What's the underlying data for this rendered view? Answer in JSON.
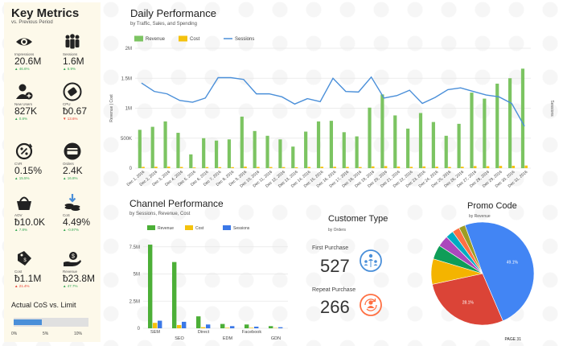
{
  "key_metrics": {
    "title": "Key Metrics",
    "subtitle": "vs. Previous Period",
    "items": [
      {
        "label": "Impressions",
        "value": "20.6M",
        "delta": "▲ 46.6%",
        "dir": "up",
        "icon": "eye-icon"
      },
      {
        "label": "Sessions",
        "value": "1.6M",
        "delta": "▲ 6.9%",
        "dir": "up",
        "icon": "people-group-icon"
      },
      {
        "label": "New Users",
        "value": "827K",
        "delta": "▲ 0.8%",
        "dir": "up",
        "icon": "add-user-icon"
      },
      {
        "label": "CPU",
        "value": "ƀ0.67",
        "delta": "▼ 13.6%",
        "dir": "down",
        "icon": "tag-icon"
      },
      {
        "label": "CVR",
        "value": "0.15%",
        "delta": "▲ 15.5%",
        "dir": "up",
        "icon": "percent-cycle-icon"
      },
      {
        "label": "Orders",
        "value": "2.4K",
        "delta": "▲ 16.8%",
        "dir": "up",
        "icon": "credit-card-icon"
      },
      {
        "label": "AOV",
        "value": "ƀ10.0K",
        "delta": "▲ 7.8%",
        "dir": "up",
        "icon": "shopping-basket-icon"
      },
      {
        "label": "CoS",
        "value": "4.49%",
        "delta": "▲ -0.97%",
        "dir": "up",
        "icon": "coins-down-icon"
      },
      {
        "label": "Cost",
        "value": "ƀ1.1M",
        "delta": "▲ 21.4%",
        "dir": "down",
        "icon": "price-tag-icon"
      },
      {
        "label": "Revenue",
        "value": "ƀ23.8M",
        "delta": "▲ 47.7%",
        "dir": "up",
        "icon": "hand-money-icon"
      }
    ],
    "colors": {
      "up": "#34a853",
      "down": "#ea4335",
      "panel": "#fdf9ea"
    }
  },
  "cos_limit": {
    "title": "Actual CoS vs. Limit",
    "actual_pct": 4.49,
    "ticks": [
      "0%",
      "5%",
      "10%"
    ]
  },
  "daily": {
    "title": "Daily Performance",
    "subtitle": "by Traffic, Sales, and Spending",
    "legend": [
      "Revenue",
      "Cost",
      "Sessions"
    ],
    "left_axis_label": "Revenue | Cost",
    "right_axis_label": "Sessions"
  },
  "channel": {
    "title": "Channel Performance",
    "subtitle": "by Sessions, Revenue, Cost",
    "legend": [
      "Revenue",
      "Cost",
      "Sessions"
    ]
  },
  "customer_type": {
    "title": "Customer Type",
    "subtitle": "by Orders",
    "first_label": "First Purchase",
    "first_value": "527",
    "repeat_label": "Repeat Purchase",
    "repeat_value": "266",
    "first_icon": "people-network-icon",
    "repeat_icon": "repeat-user-icon"
  },
  "promo": {
    "title": "Promo Code",
    "subtitle": "by Revenue"
  },
  "page_label": "PAGE 31",
  "chart_data": [
    {
      "type": "bar",
      "title": "Daily Performance",
      "subtitle": "by Traffic, Sales, and Spending",
      "categories": [
        "Dec 1, 2016",
        "Dec 2, 2016",
        "Dec 3, 2016",
        "Dec 4, 2016",
        "Dec 5, 2016",
        "Dec 6, 2016",
        "Dec 7, 2016",
        "Dec 8, 2016",
        "Dec 9, 2016",
        "Dec 10, 2016",
        "Dec 11, 2016",
        "Dec 12, 2016",
        "Dec 13, 2016",
        "Dec 14, 2016",
        "Dec 15, 2016",
        "Dec 16, 2016",
        "Dec 17, 2016",
        "Dec 18, 2016",
        "Dec 19, 2016",
        "Dec 20, 2016",
        "Dec 21, 2016",
        "Dec 22, 2016",
        "Dec 23, 2016",
        "Dec 24, 2016",
        "Dec 25, 2016",
        "Dec 26, 2016",
        "Dec 27, 2016",
        "Dec 28, 2016",
        "Dec 29, 2016",
        "Dec 30, 2016",
        "Dec 31, 2016"
      ],
      "series": [
        {
          "name": "Revenue",
          "kind": "bar",
          "color": "#7cc462",
          "values": [
            640000,
            690000,
            780000,
            590000,
            230000,
            500000,
            460000,
            480000,
            860000,
            620000,
            540000,
            480000,
            360000,
            610000,
            780000,
            790000,
            600000,
            530000,
            1010000,
            1230000,
            880000,
            660000,
            920000,
            770000,
            540000,
            740000,
            1260000,
            1160000,
            1410000,
            1500000,
            1660000
          ]
        },
        {
          "name": "Cost",
          "kind": "bar",
          "color": "#f4c20d",
          "values": [
            22000,
            25000,
            26000,
            20000,
            12000,
            18000,
            17000,
            17000,
            27000,
            21000,
            19000,
            18000,
            15000,
            20000,
            24000,
            24000,
            21000,
            19000,
            30000,
            35000,
            27000,
            22000,
            29000,
            25000,
            20000,
            24000,
            35000,
            33000,
            38000,
            40000,
            44000
          ]
        },
        {
          "name": "Sessions",
          "kind": "line",
          "color": "#4a8fd9",
          "values": [
            1420000,
            1280000,
            1240000,
            1130000,
            1100000,
            1170000,
            1510000,
            1510000,
            1480000,
            1240000,
            1240000,
            1190000,
            1070000,
            1160000,
            1110000,
            1500000,
            1280000,
            1270000,
            1520000,
            1170000,
            1210000,
            1300000,
            1080000,
            1180000,
            1310000,
            1340000,
            1280000,
            1220000,
            1190000,
            1080000,
            700000
          ]
        }
      ],
      "ylabel": "Revenue | Cost",
      "y2label": "Sessions",
      "ylim": [
        0,
        2000000
      ],
      "yticks": [
        "0",
        "500K",
        "1M",
        "1.5M",
        "2M"
      ],
      "legend_position": "top-left",
      "grid": true
    },
    {
      "type": "bar",
      "title": "Channel Performance",
      "subtitle": "by Sessions, Revenue, Cost",
      "categories": [
        "SEM",
        "SEO",
        "Direct",
        "EDM",
        "Facebook",
        "GDN"
      ],
      "series": [
        {
          "name": "Revenue",
          "color": "#4caf37",
          "values": [
            7700000,
            6100000,
            1100000,
            400000,
            350000,
            200000
          ]
        },
        {
          "name": "Cost",
          "color": "#f4c20d",
          "values": [
            500000,
            300000,
            100000,
            50000,
            50000,
            30000
          ]
        },
        {
          "name": "Sessions",
          "color": "#3b78e7",
          "values": [
            700000,
            600000,
            350000,
            200000,
            150000,
            100000
          ]
        }
      ],
      "ylim": [
        0,
        8000000
      ],
      "yticks": [
        "0",
        "2.5M",
        "5M",
        "7.5M"
      ],
      "legend_position": "top-center",
      "grid": true
    },
    {
      "type": "pie",
      "title": "Promo Code",
      "subtitle": "by Revenue",
      "slices": [
        {
          "value": 49.1,
          "color": "#4285f4",
          "label": "49.1%"
        },
        {
          "value": 28.1,
          "color": "#db4437",
          "label": "28.1%"
        },
        {
          "value": 8.0,
          "color": "#f4b400",
          "label": ""
        },
        {
          "value": 4.5,
          "color": "#0f9d58",
          "label": ""
        },
        {
          "value": 3.5,
          "color": "#ab47bc",
          "label": ""
        },
        {
          "value": 2.5,
          "color": "#00acc1",
          "label": ""
        },
        {
          "value": 2.3,
          "color": "#ff7043",
          "label": ""
        },
        {
          "value": 2.0,
          "color": "#9e9d24",
          "label": ""
        }
      ]
    }
  ]
}
